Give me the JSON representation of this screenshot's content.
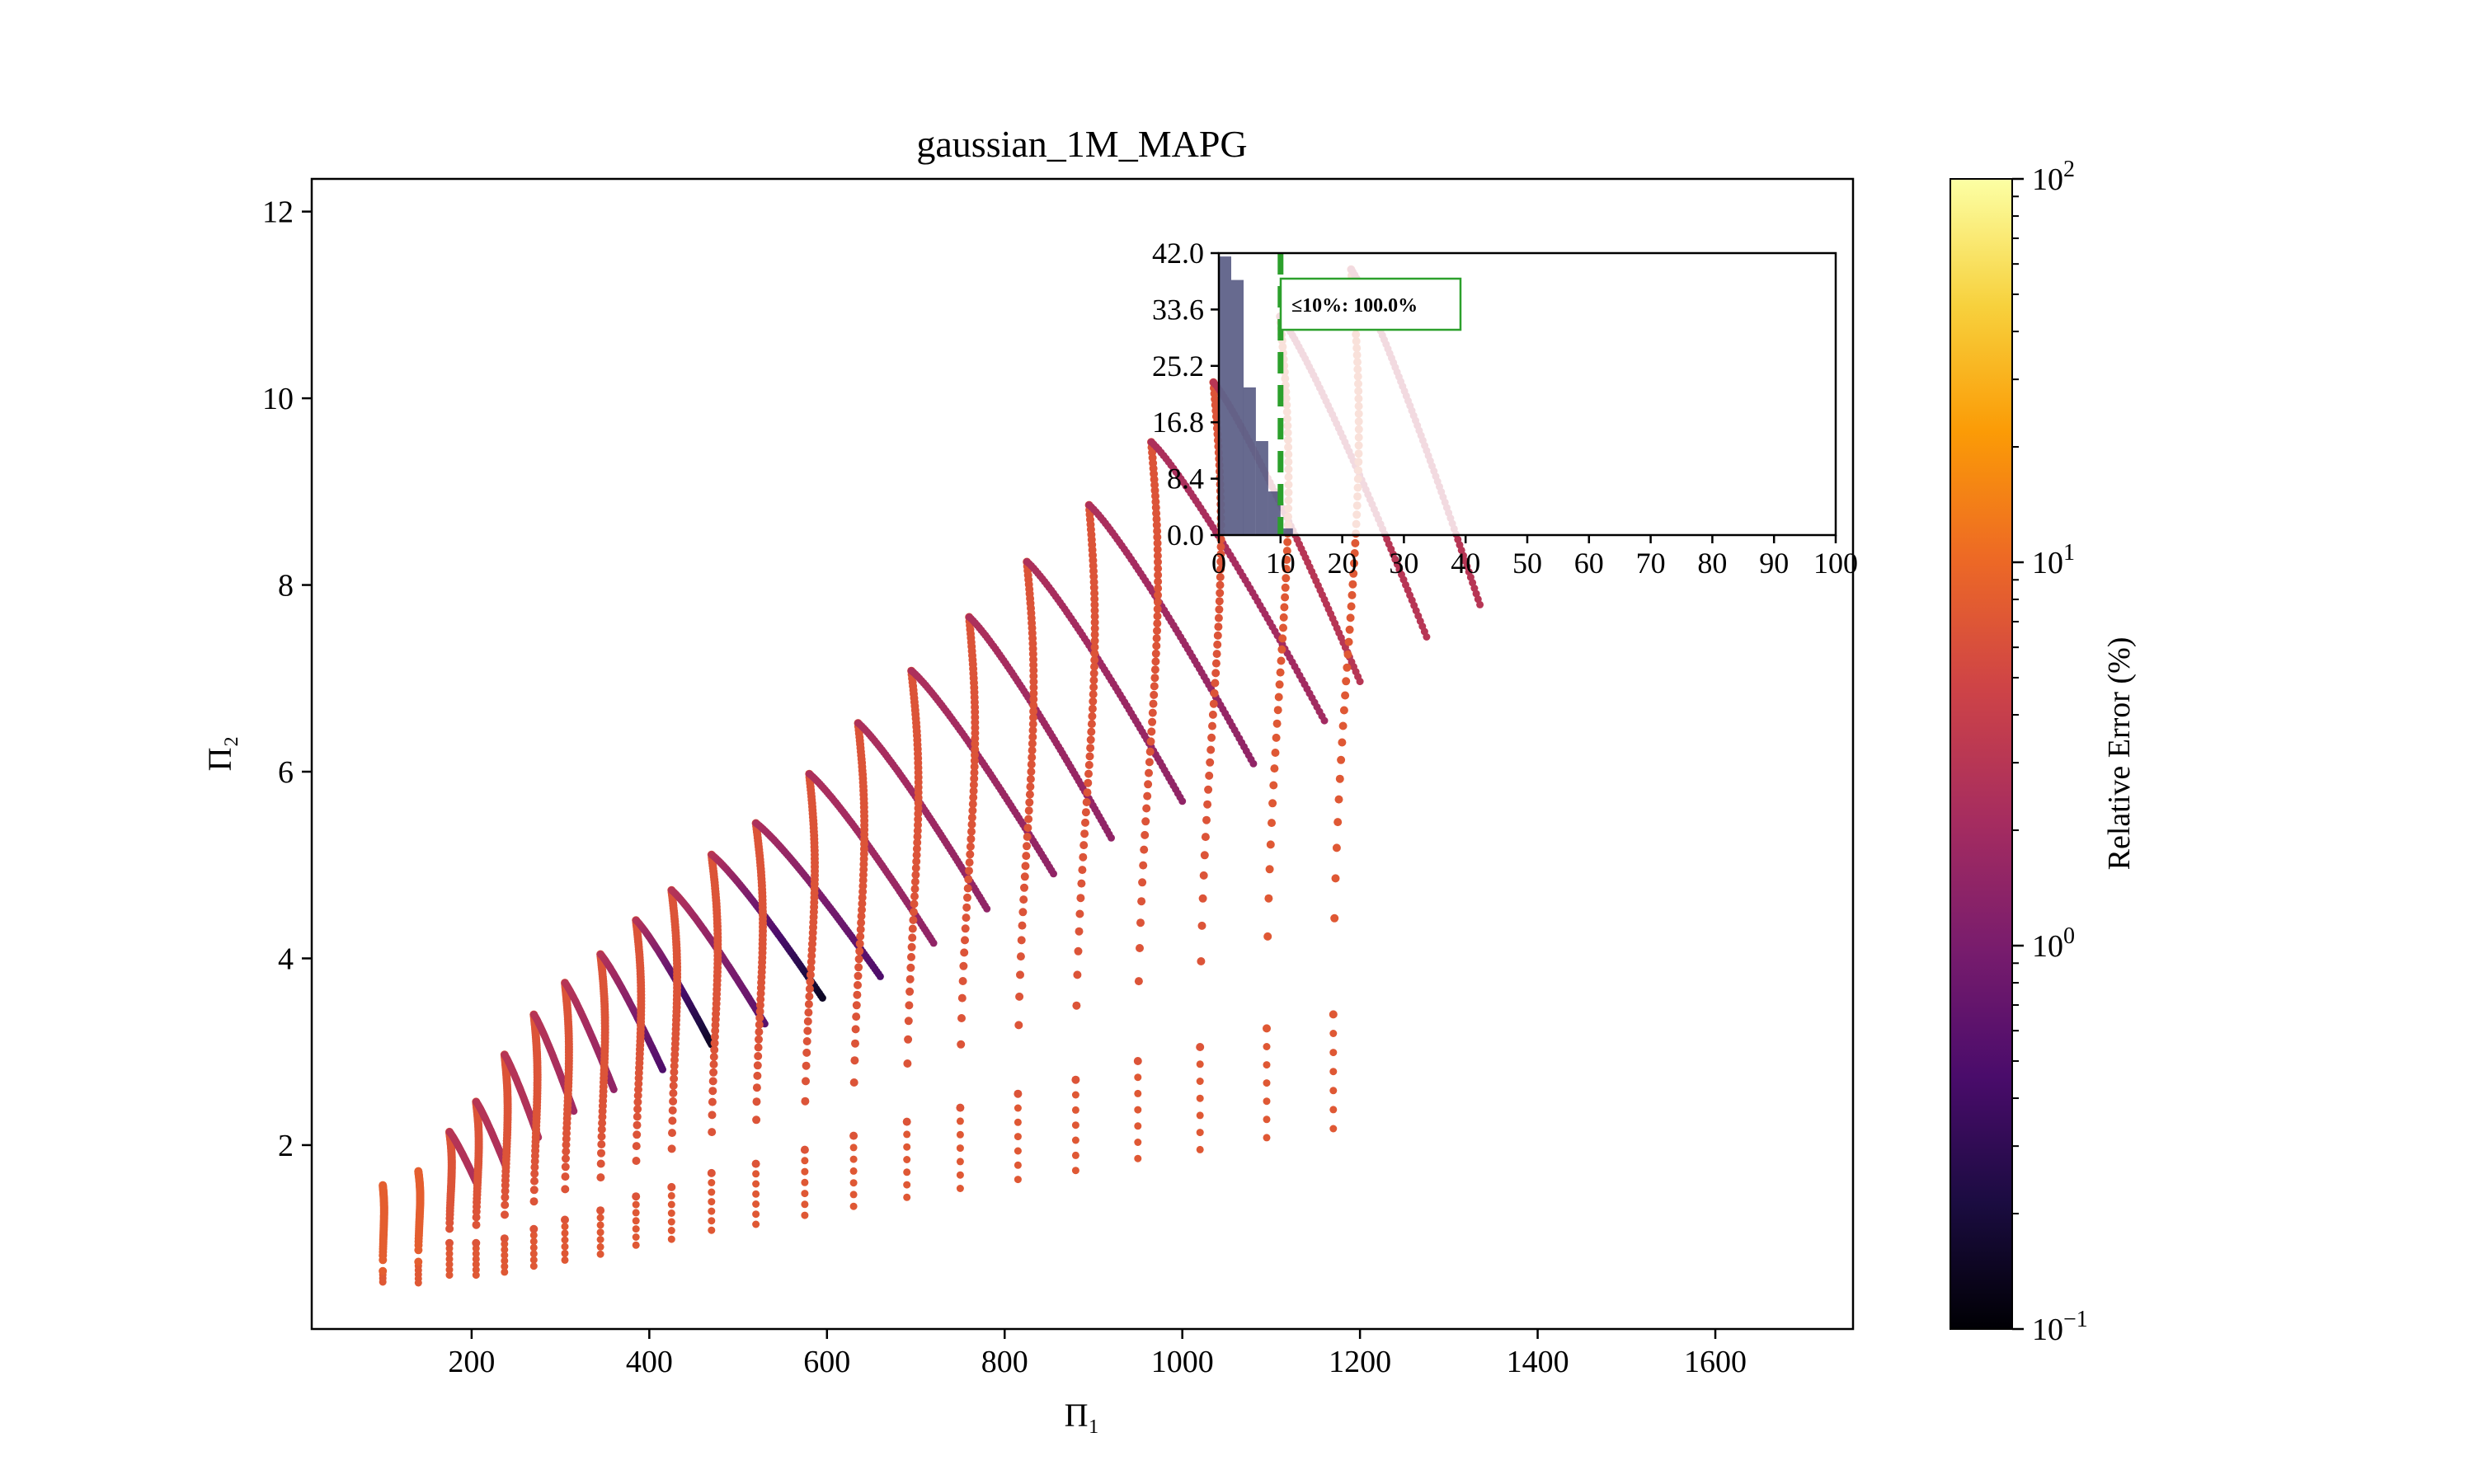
{
  "chart_data": {
    "type": "scatter",
    "title": "gaussian_1M_MAPG",
    "xlabel": "Π₁",
    "ylabel": "Π₂",
    "xlim": [
      20,
      1755
    ],
    "ylim": [
      0.03,
      12.35
    ],
    "xticks": [
      {
        "value": 200,
        "label": "200"
      },
      {
        "value": 400,
        "label": "400"
      },
      {
        "value": 600,
        "label": "600"
      },
      {
        "value": 800,
        "label": "800"
      },
      {
        "value": 1000,
        "label": "1000"
      },
      {
        "value": 1200,
        "label": "1200"
      },
      {
        "value": 1400,
        "label": "1400"
      },
      {
        "value": 1600,
        "label": "1600"
      }
    ],
    "yticks": [
      {
        "value": 2,
        "label": "2"
      },
      {
        "value": 4,
        "label": "4"
      },
      {
        "value": 6,
        "label": "6"
      },
      {
        "value": 8,
        "label": "8"
      },
      {
        "value": 10,
        "label": "10"
      },
      {
        "value": 12,
        "label": "12"
      }
    ],
    "grid": false,
    "colorbar": {
      "label": "Relative Error (%)",
      "scale": "log",
      "min": 0.1,
      "max": 100,
      "colormap": "inferno",
      "ticks": [
        {
          "value": 0.1,
          "base": "10",
          "exp": "−1"
        },
        {
          "value": 1,
          "base": "10",
          "exp": "0"
        },
        {
          "value": 10,
          "base": "10",
          "exp": "1"
        },
        {
          "value": 100,
          "base": "10",
          "exp": "2"
        }
      ]
    },
    "series": [
      {
        "x0": 100,
        "y0": 0.65,
        "k": 0.92,
        "Rmax": 0.0,
        "xpeak": 100,
        "xend": 100,
        "arc_err": 8,
        "desc_err_start": 5,
        "desc_err_end": 5,
        "tail_err": 7
      },
      {
        "x0": 140,
        "y0": 0.75,
        "k": 0.97,
        "Rmax": 0.0,
        "xpeak": 140,
        "xend": 140,
        "arc_err": 8,
        "desc_err_start": 5,
        "desc_err_end": 5,
        "tail_err": 7
      },
      {
        "x0": 175,
        "y0": 0.95,
        "k": 1.0,
        "Rmax": 0.12,
        "xpeak": 175,
        "xend": 205,
        "arc_err": 6.5,
        "desc_err_start": 3,
        "desc_err_end": 2.5,
        "tail_err": 7
      },
      {
        "x0": 205,
        "y0": 0.95,
        "k": 1.12,
        "Rmax": 0.22,
        "xpeak": 205,
        "xend": 238,
        "arc_err": 6.5,
        "desc_err_start": 3,
        "desc_err_end": 2.5,
        "tail_err": 7
      },
      {
        "x0": 237,
        "y0": 1.0,
        "k": 1.2,
        "Rmax": 0.4,
        "xpeak": 237,
        "xend": 275,
        "arc_err": 6.5,
        "desc_err_start": 3,
        "desc_err_end": 2.5,
        "tail_err": 7
      },
      {
        "x0": 270,
        "y0": 1.1,
        "k": 1.3,
        "Rmax": 0.48,
        "xpeak": 270,
        "xend": 315,
        "arc_err": 6.5,
        "desc_err_start": 3,
        "desc_err_end": 2.0,
        "tail_err": 7
      },
      {
        "x0": 305,
        "y0": 1.2,
        "k": 1.35,
        "Rmax": 0.55,
        "xpeak": 305,
        "xend": 360,
        "arc_err": 6.5,
        "desc_err_start": 3,
        "desc_err_end": 1.5,
        "tail_err": 7
      },
      {
        "x0": 345,
        "y0": 1.3,
        "k": 1.4,
        "Rmax": 0.6,
        "xpeak": 345,
        "xend": 415,
        "arc_err": 6.5,
        "desc_err_start": 3,
        "desc_err_end": 0.5,
        "tail_err": 7
      },
      {
        "x0": 385,
        "y0": 1.45,
        "k": 1.45,
        "Rmax": 0.65,
        "xpeak": 385,
        "xend": 470,
        "arc_err": 6.5,
        "desc_err_start": 3,
        "desc_err_end": 0.15,
        "tail_err": 7
      },
      {
        "x0": 425,
        "y0": 1.55,
        "k": 1.5,
        "Rmax": 0.7,
        "xpeak": 425,
        "xend": 530,
        "arc_err": 6.5,
        "desc_err_start": 3,
        "desc_err_end": 0.6,
        "tail_err": 7
      },
      {
        "x0": 470,
        "y0": 1.7,
        "k": 1.55,
        "Rmax": 0.75,
        "xpeak": 470,
        "xend": 595,
        "arc_err": 6.5,
        "desc_err_start": 3,
        "desc_err_end": 0.15,
        "tail_err": 7
      },
      {
        "x0": 520,
        "y0": 1.8,
        "k": 1.6,
        "Rmax": 0.8,
        "xpeak": 520,
        "xend": 660,
        "arc_err": 6.5,
        "desc_err_start": 2.5,
        "desc_err_end": 0.5,
        "tail_err": 7
      },
      {
        "x0": 575,
        "y0": 1.95,
        "k": 1.65,
        "Rmax": 0.9,
        "xpeak": 580,
        "xend": 720,
        "arc_err": 6.5,
        "desc_err_start": 2.5,
        "desc_err_end": 1.5,
        "tail_err": 7
      },
      {
        "x0": 630,
        "y0": 2.1,
        "k": 1.7,
        "Rmax": 1.0,
        "xpeak": 635,
        "xend": 780,
        "arc_err": 6.5,
        "desc_err_start": 2.5,
        "desc_err_end": 1.5,
        "tail_err": 7
      },
      {
        "x0": 690,
        "y0": 2.25,
        "k": 1.75,
        "Rmax": 1.1,
        "xpeak": 695,
        "xend": 855,
        "arc_err": 6.5,
        "desc_err_start": 2.5,
        "desc_err_end": 1.5,
        "tail_err": 7
      },
      {
        "x0": 750,
        "y0": 2.4,
        "k": 1.8,
        "Rmax": 1.2,
        "xpeak": 760,
        "xend": 920,
        "arc_err": 6.5,
        "desc_err_start": 2.5,
        "desc_err_end": 1.5,
        "tail_err": 7
      },
      {
        "x0": 815,
        "y0": 2.55,
        "k": 1.85,
        "Rmax": 1.3,
        "xpeak": 825,
        "xend": 1000,
        "arc_err": 6.5,
        "desc_err_start": 2.5,
        "desc_err_end": 1.5,
        "tail_err": 7
      },
      {
        "x0": 880,
        "y0": 2.7,
        "k": 1.9,
        "Rmax": 1.4,
        "xpeak": 895,
        "xend": 1080,
        "arc_err": 6.5,
        "desc_err_start": 2.5,
        "desc_err_end": 1.5,
        "tail_err": 7
      },
      {
        "x0": 950,
        "y0": 2.9,
        "k": 1.95,
        "Rmax": 1.5,
        "xpeak": 965,
        "xend": 1160,
        "arc_err": 6.5,
        "desc_err_start": 2.5,
        "desc_err_end": 2.0,
        "tail_err": 7
      },
      {
        "x0": 1020,
        "y0": 3.05,
        "k": 2.0,
        "Rmax": 1.6,
        "xpeak": 1035,
        "xend": 1200,
        "arc_err": 6.5,
        "desc_err_start": 3,
        "desc_err_end": 3,
        "tail_err": 7
      },
      {
        "x0": 1095,
        "y0": 3.25,
        "k": 2.05,
        "Rmax": 1.7,
        "xpeak": 1110,
        "xend": 1275,
        "arc_err": 7,
        "desc_err_start": 3,
        "desc_err_end": 3,
        "tail_err": 7
      },
      {
        "x0": 1170,
        "y0": 3.4,
        "k": 2.1,
        "Rmax": 1.75,
        "xpeak": 1190,
        "xend": 1335,
        "arc_err": 7,
        "desc_err_start": 3,
        "desc_err_end": 3,
        "tail_err": 7
      }
    ],
    "inset": {
      "type": "bar",
      "title": "",
      "xlim": [
        0,
        100
      ],
      "ylim": [
        0,
        42.0
      ],
      "bin_width": 2,
      "bin_starts": [
        0,
        2,
        4,
        6,
        8,
        10
      ],
      "bin_counts": [
        41.5,
        38.0,
        22.0,
        14.0,
        6.5,
        1.0
      ],
      "bar_color": "#34386a",
      "xticks": [
        "0",
        "10",
        "20",
        "30",
        "40",
        "50",
        "60",
        "70",
        "80",
        "90",
        "100"
      ],
      "yticks": [
        "0.0",
        "8.4",
        "16.8",
        "25.2",
        "33.6",
        "42.0"
      ],
      "threshold": 10,
      "threshold_color": "#2ca02c",
      "annotation": "≤10%: 100.0%"
    }
  }
}
